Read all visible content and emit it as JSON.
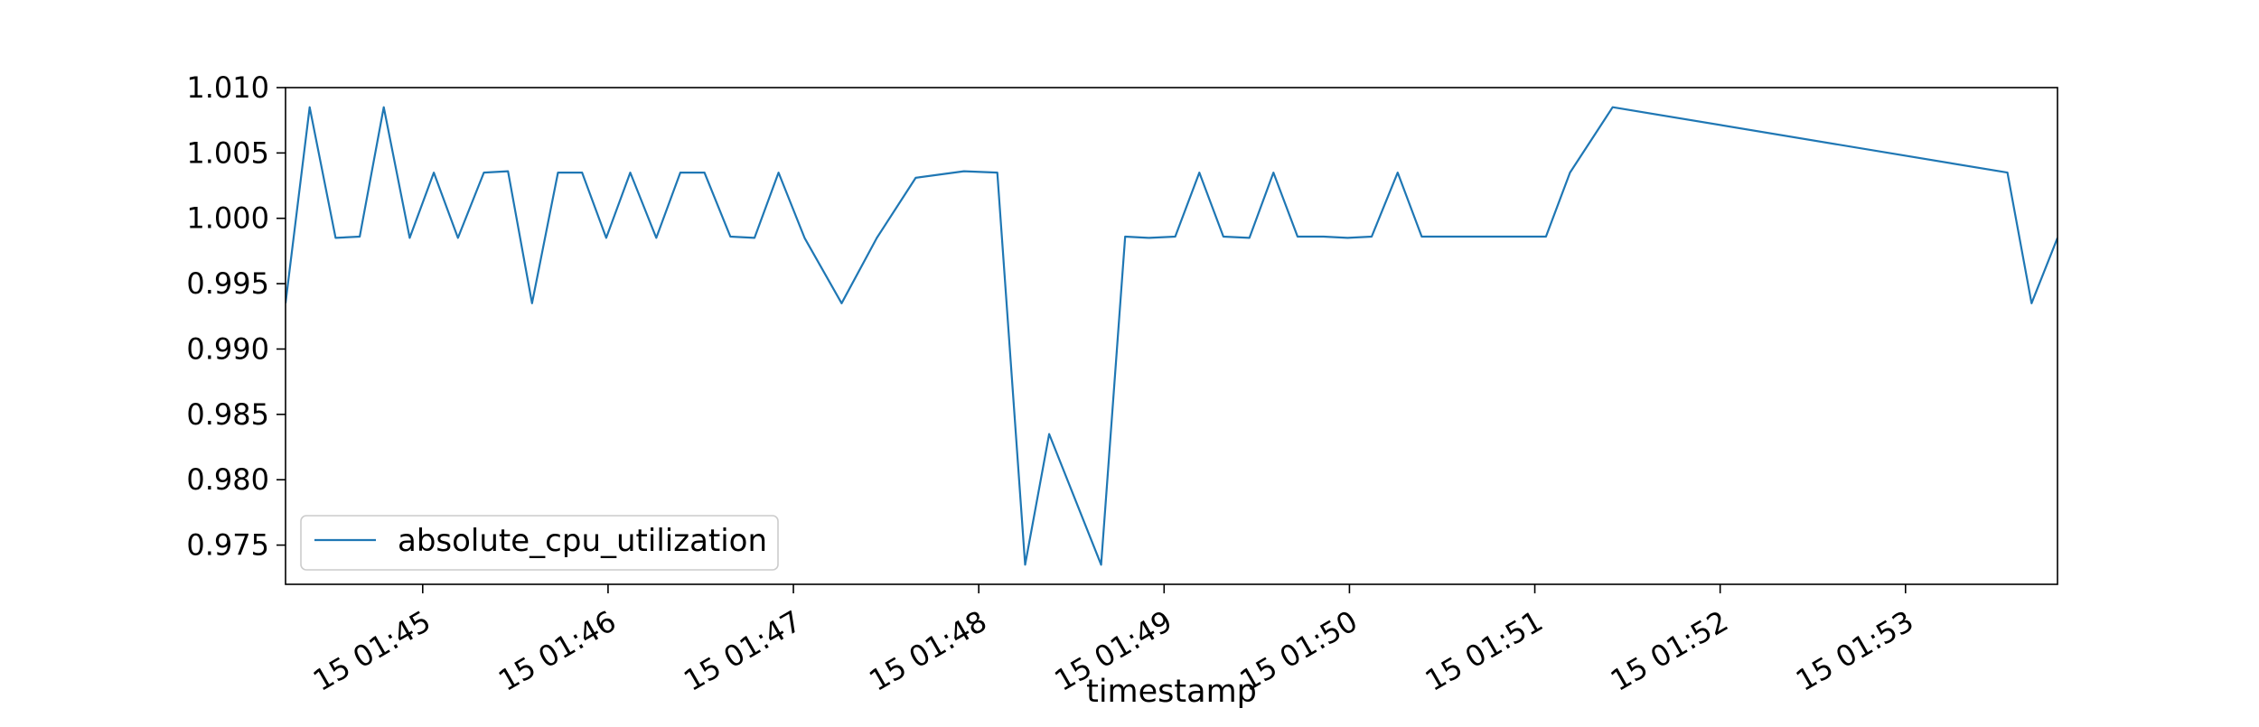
{
  "chart_data": {
    "type": "line",
    "xlabel": "timestamp",
    "ylabel": "",
    "title": "",
    "x_ticks": [
      "15 01:45",
      "15 01:46",
      "15 01:47",
      "15 01:48",
      "15 01:49",
      "15 01:50",
      "15 01:51",
      "15 01:52",
      "15 01:53"
    ],
    "x_tick_minutes": [
      45,
      46,
      47,
      48,
      49,
      50,
      51,
      52,
      53
    ],
    "xlim_minutes": [
      44.26,
      53.82
    ],
    "ylim": [
      0.972,
      1.01
    ],
    "y_ticks": [
      "0.975",
      "0.980",
      "0.985",
      "0.990",
      "0.995",
      "1.000",
      "1.005",
      "1.010"
    ],
    "y_tick_values": [
      0.975,
      0.98,
      0.985,
      0.99,
      0.995,
      1.0,
      1.005,
      1.01
    ],
    "grid": false,
    "legend_position": "lower-left",
    "series": [
      {
        "name": "absolute_cpu_utilization",
        "color": "#1f77b4",
        "x_minutes": [
          44.26,
          44.39,
          44.53,
          44.66,
          44.79,
          44.93,
          45.06,
          45.19,
          45.33,
          45.46,
          45.59,
          45.73,
          45.86,
          45.99,
          46.12,
          46.26,
          46.39,
          46.52,
          46.66,
          46.79,
          46.92,
          47.06,
          47.26,
          47.45,
          47.66,
          47.92,
          48.1,
          48.25,
          48.38,
          48.66,
          48.79,
          48.92,
          49.06,
          49.19,
          49.32,
          49.46,
          49.59,
          49.72,
          49.86,
          49.99,
          50.12,
          50.26,
          50.39,
          50.66,
          50.92,
          51.06,
          51.19,
          51.42,
          53.55,
          53.68,
          53.82
        ],
        "values": [
          0.9935,
          1.0085,
          0.9985,
          0.9986,
          1.0085,
          0.9985,
          1.0035,
          0.9985,
          1.0035,
          1.0036,
          0.9935,
          1.0035,
          1.0035,
          0.9985,
          1.0035,
          0.9985,
          1.0035,
          1.0035,
          0.9986,
          0.9985,
          1.0035,
          0.9985,
          0.9935,
          0.9985,
          1.0031,
          1.0036,
          1.0035,
          0.9735,
          0.9835,
          0.9735,
          0.9986,
          0.9985,
          0.9986,
          1.0035,
          0.9986,
          0.9985,
          1.0035,
          0.9986,
          0.9986,
          0.9985,
          0.9986,
          1.0035,
          0.9986,
          0.9986,
          0.9986,
          0.9986,
          1.0035,
          1.0085,
          1.0035,
          0.9935,
          0.9985
        ]
      }
    ]
  }
}
